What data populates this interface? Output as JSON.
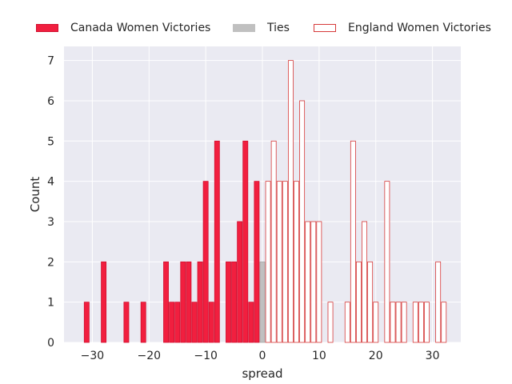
{
  "chart_data": {
    "type": "bar",
    "xlabel": "spread",
    "ylabel": "Count",
    "xlim": [
      -35,
      35
    ],
    "ylim": [
      0,
      7.35
    ],
    "xticks": [
      -30,
      -20,
      -10,
      0,
      10,
      20,
      30
    ],
    "xtick_labels": [
      "−30",
      "−20",
      "−10",
      "0",
      "10",
      "20",
      "30"
    ],
    "yticks": [
      0,
      1,
      2,
      3,
      4,
      5,
      6,
      7
    ],
    "ytick_labels": [
      "0",
      "1",
      "2",
      "3",
      "4",
      "5",
      "6",
      "7"
    ],
    "grid": true,
    "legend_position": "top, outside plot",
    "series": [
      {
        "name": "Canada Women Victories",
        "color": "#f11f3f",
        "edge": "#d11030",
        "filled": true,
        "x": [
          -31,
          -28,
          -24,
          -21,
          -17,
          -16,
          -15,
          -14,
          -13,
          -12,
          -11,
          -10,
          -9,
          -8,
          -6,
          -5,
          -4,
          -3,
          -2,
          -1
        ],
        "values": [
          1,
          2,
          1,
          1,
          2,
          1,
          1,
          2,
          2,
          1,
          2,
          4,
          1,
          5,
          2,
          2,
          3,
          5,
          1,
          4
        ]
      },
      {
        "name": "Ties",
        "color": "#c0c0c0",
        "edge": "#a8a8a8",
        "filled": true,
        "x": [
          0
        ],
        "values": [
          2
        ]
      },
      {
        "name": "England Women Victories",
        "color": "#ffffff",
        "edge": "#d63a3a",
        "filled": false,
        "x": [
          1,
          2,
          3,
          4,
          5,
          6,
          7,
          8,
          9,
          10,
          12,
          15,
          16,
          17,
          18,
          19,
          20,
          22,
          23,
          24,
          25,
          27,
          28,
          29,
          31,
          32
        ],
        "values": [
          4,
          5,
          4,
          4,
          7,
          4,
          6,
          3,
          3,
          3,
          1,
          1,
          5,
          2,
          3,
          2,
          1,
          4,
          1,
          1,
          1,
          1,
          1,
          1,
          2,
          1
        ]
      }
    ]
  }
}
